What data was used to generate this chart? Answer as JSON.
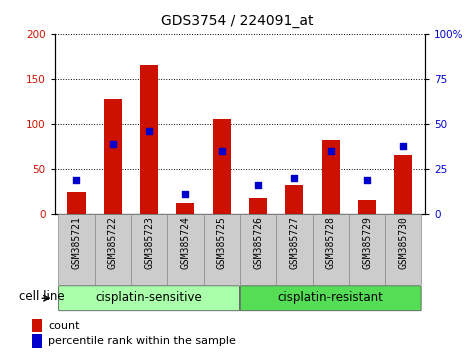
{
  "title": "GDS3754 / 224091_at",
  "samples": [
    "GSM385721",
    "GSM385722",
    "GSM385723",
    "GSM385724",
    "GSM385725",
    "GSM385726",
    "GSM385727",
    "GSM385728",
    "GSM385729",
    "GSM385730"
  ],
  "count": [
    25,
    128,
    165,
    12,
    105,
    18,
    32,
    82,
    16,
    65
  ],
  "percentile": [
    19,
    39,
    46,
    11,
    35,
    16,
    20,
    35,
    19,
    38
  ],
  "left_ylim": [
    0,
    200
  ],
  "right_ylim": [
    0,
    100
  ],
  "left_yticks": [
    0,
    50,
    100,
    150,
    200
  ],
  "right_yticks": [
    0,
    25,
    50,
    75,
    100
  ],
  "bar_color": "#cc1100",
  "dot_color": "#0000cc",
  "group_colors": [
    "#aaffaa",
    "#55dd55"
  ],
  "groups": [
    {
      "label": "cisplatin-sensitive",
      "start": 0,
      "end": 5
    },
    {
      "label": "cisplatin-resistant",
      "start": 5,
      "end": 10
    }
  ],
  "group_label": "cell line",
  "legend_count_label": "count",
  "legend_pct_label": "percentile rank within the sample",
  "title_fontsize": 10,
  "axis_label_fontsize": 8.5,
  "tick_fontsize": 7.5,
  "sample_fontsize": 7,
  "legend_fontsize": 8
}
